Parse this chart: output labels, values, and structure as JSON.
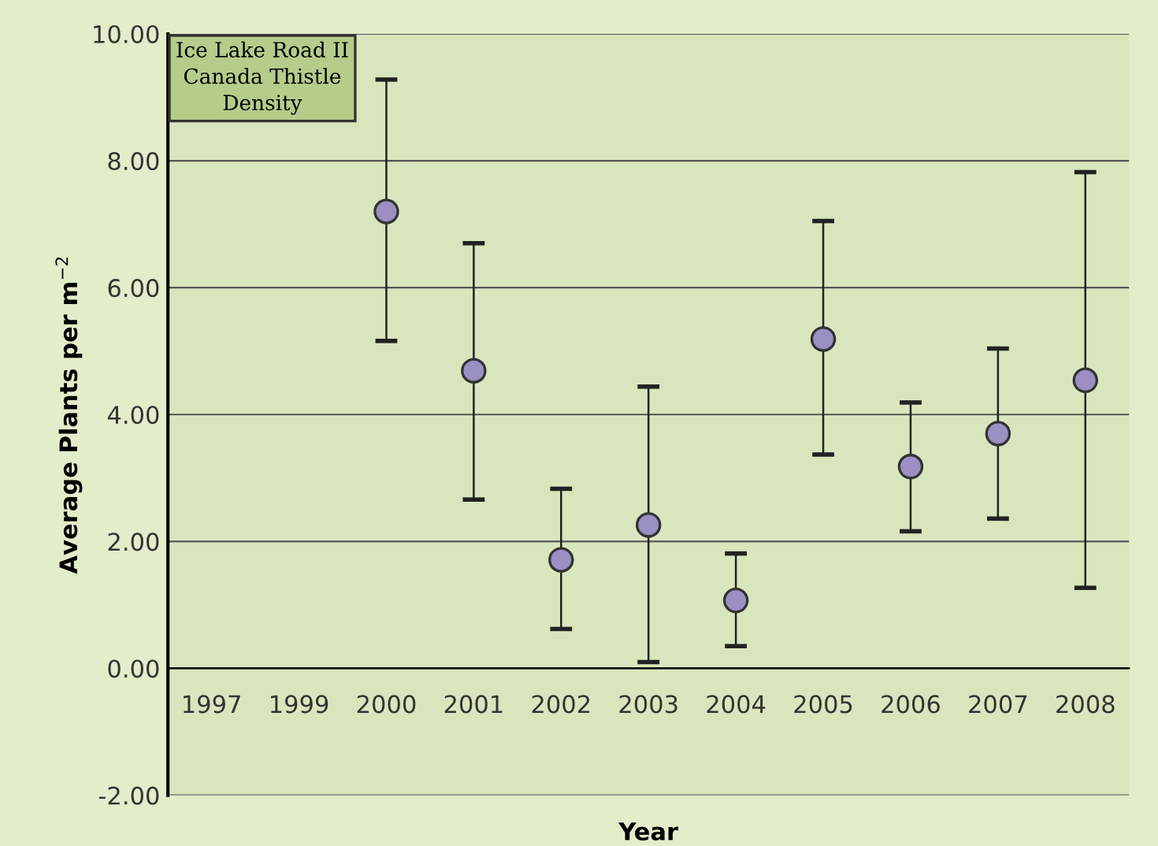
{
  "chart_data": {
    "type": "scatter",
    "title": "Ice Lake Road II\nCanada Thistle\nDensity",
    "xlabel": "Year",
    "ylabel": "Average Plants per m$^{−2}$",
    "categories": [
      "1997",
      "1999",
      "2000",
      "2001",
      "2002",
      "2003",
      "2004",
      "2005",
      "2006",
      "2007",
      "2008"
    ],
    "series": [
      {
        "color": "#9b8fc4",
        "values": [
          null,
          null,
          7.2,
          4.69,
          1.71,
          2.26,
          1.07,
          5.19,
          3.18,
          3.7,
          4.54
        ],
        "errors": [
          null,
          null,
          [
            5.16,
            9.28
          ],
          [
            2.66,
            6.7
          ],
          [
            0.62,
            2.83
          ],
          [
            0.1,
            4.44
          ],
          [
            0.35,
            1.81
          ],
          [
            3.37,
            7.05
          ],
          [
            2.16,
            4.19
          ],
          [
            2.36,
            5.04
          ],
          [
            1.27,
            7.82
          ]
        ]
      }
    ],
    "ylim": [
      -2,
      10
    ],
    "yticks": [
      {
        "value": -2,
        "label": "-2.00"
      },
      {
        "value": 0,
        "label": "0.00"
      },
      {
        "value": 2,
        "label": "2.00"
      },
      {
        "value": 4,
        "label": "4.00"
      },
      {
        "value": 6,
        "label": "6.00"
      },
      {
        "value": 8,
        "label": "8.00"
      },
      {
        "value": 10,
        "label": "10.00"
      }
    ],
    "grid": "y",
    "marker": "circle"
  }
}
